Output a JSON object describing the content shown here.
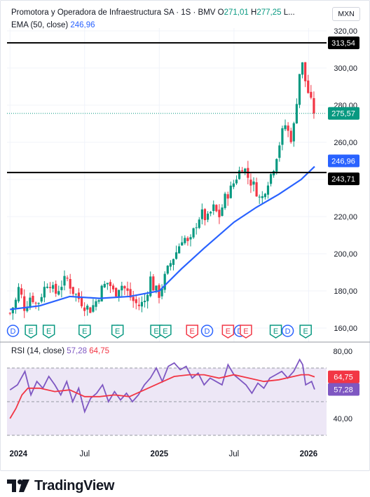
{
  "header": {
    "title": "Promotora y Operadora de Infraestructura SA · 1S · BMV",
    "o_label": "O",
    "o_value": "271,01",
    "h_label": "H",
    "h_value": "277,25",
    "more": "L...",
    "currency": "MXN"
  },
  "ema_legend": {
    "label": "EMA (50, close)",
    "value": "246,96"
  },
  "rsi_legend": {
    "label": "RSI (14, close)",
    "value1": "57,28",
    "value2": "64,75"
  },
  "brand": {
    "name": "TradingView"
  },
  "colors": {
    "up": "#089981",
    "down": "#f23645",
    "ema": "#2962ff",
    "rsi": "#7e57c2",
    "rsi_ma": "#f23645",
    "rsi_band": "#ede7f6"
  },
  "chart_data": [
    {
      "type": "candlestick",
      "title": "Promotora y Operadora de Infraestructura SA · 1S · BMV",
      "y_axis": {
        "range": [
          160,
          322
        ],
        "ticks": [
          "320,00",
          "300,00",
          "280,00",
          "260,00",
          "240,00",
          "220,00",
          "200,00",
          "180,00",
          "160,00"
        ],
        "tick_values": [
          320,
          300,
          280,
          260,
          240,
          220,
          200,
          180,
          160
        ]
      },
      "x_axis": {
        "ticks": [
          "2024",
          "Jul",
          "2025",
          "Jul",
          "2026"
        ],
        "tick_positions": [
          0.0,
          0.5,
          1.0,
          1.5,
          2.0
        ],
        "range": [
          -0.02,
          2.12
        ]
      },
      "price_series": [
        [
          0.0,
          168
        ],
        [
          0.04,
          175
        ],
        [
          0.06,
          182
        ],
        [
          0.1,
          170
        ],
        [
          0.14,
          178
        ],
        [
          0.18,
          172
        ],
        [
          0.22,
          180
        ],
        [
          0.26,
          186
        ],
        [
          0.3,
          178
        ],
        [
          0.34,
          183
        ],
        [
          0.38,
          187
        ],
        [
          0.42,
          180
        ],
        [
          0.46,
          176
        ],
        [
          0.5,
          172
        ],
        [
          0.54,
          170
        ],
        [
          0.58,
          175
        ],
        [
          0.62,
          182
        ],
        [
          0.66,
          185
        ],
        [
          0.7,
          178
        ],
        [
          0.74,
          184
        ],
        [
          0.78,
          180
        ],
        [
          0.82,
          175
        ],
        [
          0.86,
          172
        ],
        [
          0.9,
          174
        ],
        [
          0.92,
          180
        ],
        [
          0.94,
          187
        ],
        [
          0.96,
          182
        ],
        [
          1.0,
          178
        ],
        [
          1.04,
          188
        ],
        [
          1.08,
          196
        ],
        [
          1.12,
          202
        ],
        [
          1.16,
          210
        ],
        [
          1.2,
          204
        ],
        [
          1.24,
          215
        ],
        [
          1.28,
          222
        ],
        [
          1.32,
          218
        ],
        [
          1.36,
          225
        ],
        [
          1.4,
          220
        ],
        [
          1.44,
          230
        ],
        [
          1.48,
          235
        ],
        [
          1.52,
          242
        ],
        [
          1.56,
          248
        ],
        [
          1.6,
          240
        ],
        [
          1.64,
          236
        ],
        [
          1.68,
          228
        ],
        [
          1.72,
          238
        ],
        [
          1.76,
          245
        ],
        [
          1.8,
          258
        ],
        [
          1.84,
          270
        ],
        [
          1.88,
          262
        ],
        [
          1.9,
          268
        ],
        [
          1.94,
          298
        ],
        [
          1.96,
          302
        ],
        [
          1.98,
          292
        ],
        [
          2.0,
          286
        ],
        [
          2.02,
          280
        ],
        [
          2.04,
          275.57
        ]
      ],
      "ohlc": {
        "open": 271.01,
        "high": 277.25,
        "last": 275.57
      },
      "horizontal_lines": [
        {
          "value": 313.54,
          "label": "313,54"
        },
        {
          "value": 243.71,
          "label": "243,71"
        }
      ],
      "last_price": {
        "value": 275.57,
        "label": "275,57"
      },
      "ema": {
        "name": "EMA (50, close)",
        "last": 246.96,
        "label": "246,96",
        "points": [
          [
            0.0,
            170
          ],
          [
            0.2,
            172
          ],
          [
            0.4,
            177
          ],
          [
            0.6,
            176
          ],
          [
            0.8,
            177
          ],
          [
            1.0,
            180
          ],
          [
            1.15,
            192
          ],
          [
            1.3,
            203
          ],
          [
            1.5,
            217
          ],
          [
            1.65,
            225
          ],
          [
            1.8,
            232
          ],
          [
            1.95,
            240
          ],
          [
            2.04,
            246.96
          ]
        ]
      },
      "event_markers": [
        {
          "type": "D",
          "x": 0.02
        },
        {
          "type": "E",
          "x": 0.14
        },
        {
          "type": "E",
          "x": 0.26
        },
        {
          "type": "E",
          "x": 0.5
        },
        {
          "type": "D",
          "x": 0.72
        },
        {
          "type": "E",
          "x": 0.72
        },
        {
          "type": "E",
          "x": 0.98
        },
        {
          "type": "E",
          "x": 1.04
        },
        {
          "type": "E",
          "x": 1.22
        },
        {
          "type": "D",
          "x": 1.32
        },
        {
          "type": "E",
          "x": 1.46
        },
        {
          "type": "D",
          "x": 1.54
        },
        {
          "type": "E",
          "x": 1.58
        },
        {
          "type": "E",
          "x": 1.78
        },
        {
          "type": "D",
          "x": 1.86
        },
        {
          "type": "E",
          "x": 1.98
        }
      ]
    },
    {
      "type": "line",
      "title": "RSI (14, close)",
      "y_axis": {
        "range": [
          28,
          82
        ],
        "ticks": [
          "80,00",
          "40,00"
        ],
        "tick_values": [
          80,
          40
        ]
      },
      "bands": [
        70,
        50,
        30
      ],
      "series": [
        {
          "name": "RSI",
          "last": 57.28,
          "label": "57,28",
          "values": [
            [
              0.0,
              57
            ],
            [
              0.05,
              60
            ],
            [
              0.1,
              68
            ],
            [
              0.14,
              54
            ],
            [
              0.18,
              62
            ],
            [
              0.22,
              58
            ],
            [
              0.26,
              65
            ],
            [
              0.3,
              60
            ],
            [
              0.34,
              54
            ],
            [
              0.38,
              62
            ],
            [
              0.42,
              50
            ],
            [
              0.46,
              58
            ],
            [
              0.5,
              44
            ],
            [
              0.54,
              52
            ],
            [
              0.58,
              55
            ],
            [
              0.62,
              60
            ],
            [
              0.66,
              50
            ],
            [
              0.7,
              56
            ],
            [
              0.74,
              51
            ],
            [
              0.78,
              55
            ],
            [
              0.82,
              50
            ],
            [
              0.86,
              54
            ],
            [
              0.9,
              60
            ],
            [
              0.94,
              64
            ],
            [
              0.98,
              70
            ],
            [
              1.02,
              62
            ],
            [
              1.06,
              71
            ],
            [
              1.1,
              73
            ],
            [
              1.14,
              69
            ],
            [
              1.18,
              71
            ],
            [
              1.22,
              64
            ],
            [
              1.26,
              67
            ],
            [
              1.3,
              60
            ],
            [
              1.34,
              64
            ],
            [
              1.38,
              62
            ],
            [
              1.42,
              60
            ],
            [
              1.46,
              72
            ],
            [
              1.5,
              66
            ],
            [
              1.54,
              63
            ],
            [
              1.58,
              60
            ],
            [
              1.62,
              55
            ],
            [
              1.66,
              61
            ],
            [
              1.7,
              58
            ],
            [
              1.74,
              64
            ],
            [
              1.78,
              66
            ],
            [
              1.82,
              68
            ],
            [
              1.86,
              64
            ],
            [
              1.9,
              68
            ],
            [
              1.94,
              75
            ],
            [
              1.96,
              72
            ],
            [
              1.98,
              60
            ],
            [
              2.02,
              62
            ],
            [
              2.04,
              57.28
            ]
          ]
        },
        {
          "name": "RSI-based MA",
          "last": 64.75,
          "label": "64,75",
          "values": [
            [
              0.0,
              40
            ],
            [
              0.04,
              46
            ],
            [
              0.08,
              54
            ],
            [
              0.12,
              58
            ],
            [
              0.2,
              58
            ],
            [
              0.3,
              56
            ],
            [
              0.4,
              57
            ],
            [
              0.5,
              53
            ],
            [
              0.6,
              53
            ],
            [
              0.7,
              54
            ],
            [
              0.8,
              53
            ],
            [
              0.9,
              57
            ],
            [
              1.0,
              61
            ],
            [
              1.1,
              65
            ],
            [
              1.2,
              66
            ],
            [
              1.3,
              66
            ],
            [
              1.4,
              64
            ],
            [
              1.5,
              66
            ],
            [
              1.6,
              64
            ],
            [
              1.7,
              62
            ],
            [
              1.8,
              63
            ],
            [
              1.9,
              65
            ],
            [
              1.95,
              66
            ],
            [
              2.0,
              66
            ],
            [
              2.04,
              64.75
            ]
          ]
        }
      ]
    }
  ]
}
